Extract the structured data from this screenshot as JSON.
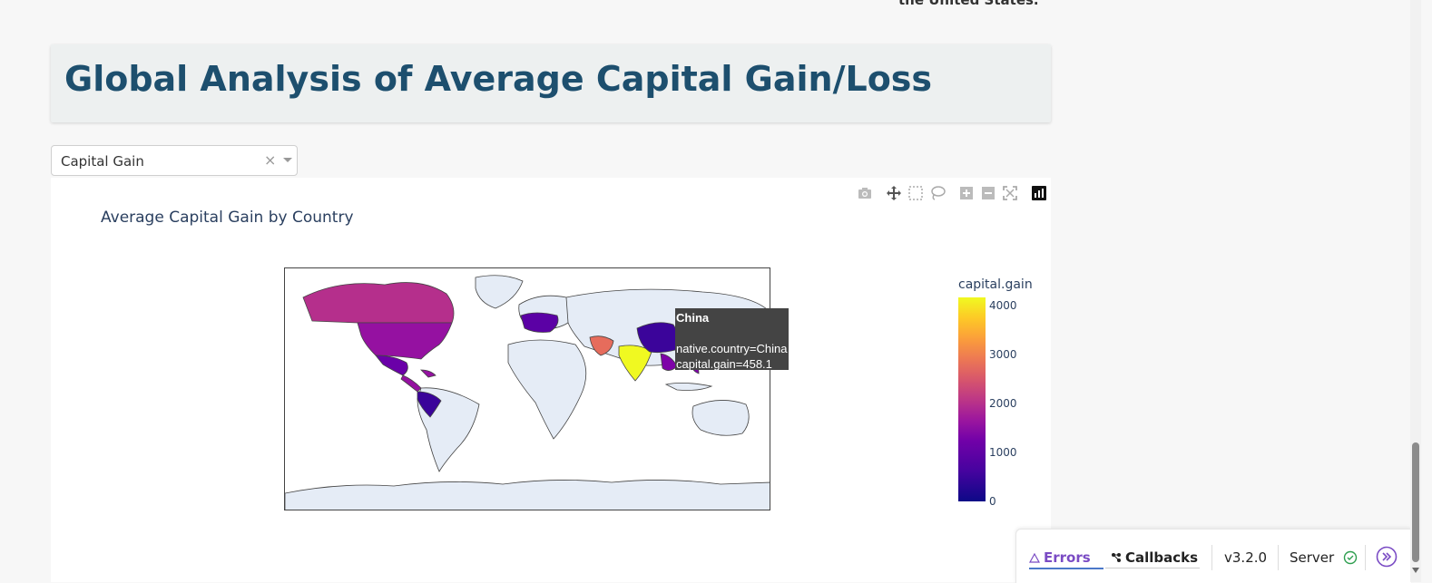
{
  "page": {
    "top_note": "the United States.",
    "section_title": "Global Analysis of Average Capital Gain/Loss"
  },
  "dropdown": {
    "selected": "Capital Gain",
    "clear_symbol": "×"
  },
  "modebar": {
    "icons": [
      "camera-icon",
      "pan-icon",
      "box-select-icon",
      "lasso-icon",
      "zoom-in-icon",
      "zoom-out-icon",
      "autoscale-icon",
      "plotly-logo-icon"
    ]
  },
  "chart": {
    "title": "Average Capital Gain by Country",
    "colorbar_title": "capital.gain",
    "colorbar_ticks": [
      "4000",
      "3000",
      "2000",
      "1000",
      "0"
    ],
    "colorscale": [
      "#0d0887",
      "#46039f",
      "#7201a8",
      "#9c179e",
      "#bd3786",
      "#d8576b",
      "#ed7953",
      "#fb9f3a",
      "#fdca26",
      "#f0f921"
    ],
    "tooltip": {
      "title": "China",
      "line1": "native.country=China",
      "line2": "capital.gain=458.1"
    }
  },
  "chart_data": {
    "type": "choropleth",
    "title": "Average Capital Gain by Country",
    "colorbar_title": "capital.gain",
    "color_range": [
      0,
      4200
    ],
    "hover": {
      "native.country": "China",
      "capital.gain": 458.1
    }
  },
  "devtools": {
    "errors": "Errors",
    "callbacks": "Callbacks",
    "version": "v3.2.0",
    "server": "Server"
  }
}
